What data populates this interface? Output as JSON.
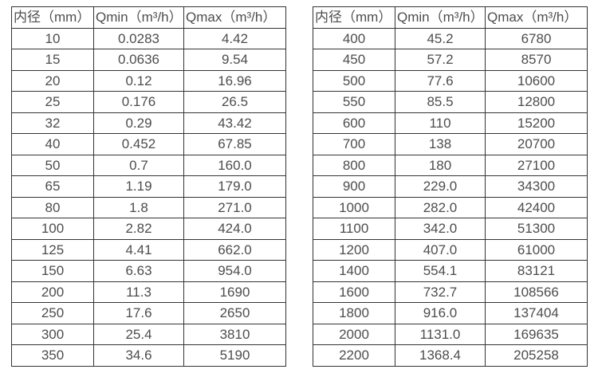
{
  "page": {
    "background": "#ffffff",
    "border_color": "#333333",
    "text_color": "#4d4d4d"
  },
  "chart_data": [
    {
      "type": "table",
      "columns": [
        "内径（mm）",
        "Qmin（m³/h）",
        "Qmax（m³/h）"
      ],
      "rows": [
        [
          "10",
          "0.0283",
          "4.42"
        ],
        [
          "15",
          "0.0636",
          "9.54"
        ],
        [
          "20",
          "0.12",
          "16.96"
        ],
        [
          "25",
          "0.176",
          "26.5"
        ],
        [
          "32",
          "0.29",
          "43.42"
        ],
        [
          "40",
          "0.452",
          "67.85"
        ],
        [
          "50",
          "0.7",
          "160.0"
        ],
        [
          "65",
          "1.19",
          "179.0"
        ],
        [
          "80",
          "1.8",
          "271.0"
        ],
        [
          "100",
          "2.82",
          "424.0"
        ],
        [
          "125",
          "4.41",
          "662.0"
        ],
        [
          "150",
          "6.63",
          "954.0"
        ],
        [
          "200",
          "11.3",
          "1690"
        ],
        [
          "250",
          "17.6",
          "2650"
        ],
        [
          "300",
          "25.4",
          "3810"
        ],
        [
          "350",
          "34.6",
          "5190"
        ]
      ]
    },
    {
      "type": "table",
      "columns": [
        "内径（mm）",
        "Qmin（m³/h）",
        "Qmax（m³/h）"
      ],
      "rows": [
        [
          "400",
          "45.2",
          "6780"
        ],
        [
          "450",
          "57.2",
          "8570"
        ],
        [
          "500",
          "77.6",
          "10600"
        ],
        [
          "550",
          "85.5",
          "12800"
        ],
        [
          "600",
          "110",
          "15200"
        ],
        [
          "700",
          "138",
          "20700"
        ],
        [
          "800",
          "180",
          "27100"
        ],
        [
          "900",
          "229.0",
          "34300"
        ],
        [
          "1000",
          "282.0",
          "42400"
        ],
        [
          "1100",
          "342.0",
          "51300"
        ],
        [
          "1200",
          "407.0",
          "61000"
        ],
        [
          "1400",
          "554.1",
          "83121"
        ],
        [
          "1600",
          "732.7",
          "108566"
        ],
        [
          "1800",
          "916.0",
          "137404"
        ],
        [
          "2000",
          "1131.0",
          "169635"
        ],
        [
          "2200",
          "1368.4",
          "205258"
        ]
      ]
    }
  ]
}
